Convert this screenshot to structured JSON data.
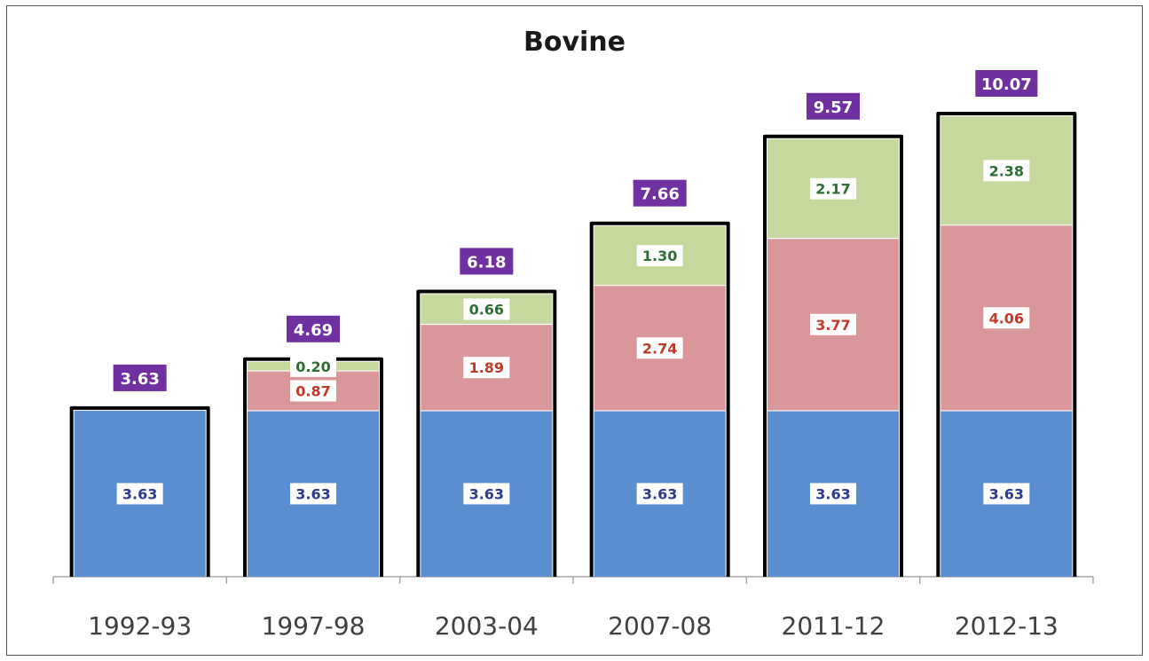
{
  "chart_data": {
    "type": "bar",
    "stacked": true,
    "title": "Bovine",
    "xlabel": "",
    "ylabel": "",
    "ylim": [
      0,
      10.07
    ],
    "grid": false,
    "legend": "none",
    "categories": [
      "1992-93",
      "1997-98",
      "2003-04",
      "2007-08",
      "2011-12",
      "2012-13"
    ],
    "series": [
      {
        "color": "#5b8ed0",
        "label_color": "#2e3a8c",
        "values": [
          3.63,
          3.63,
          3.63,
          3.63,
          3.63,
          3.63
        ]
      },
      {
        "color": "#d9979a",
        "label_color": "#c0392b",
        "values": [
          0,
          0.87,
          1.89,
          2.74,
          3.77,
          4.06
        ]
      },
      {
        "color": "#c6d89d",
        "label_color": "#2e6e35",
        "values": [
          0,
          0.2,
          0.66,
          1.3,
          2.17,
          2.38
        ]
      }
    ],
    "totals": [
      "3.63",
      "4.69",
      "6.18",
      "7.66",
      "9.57",
      "10.07"
    ],
    "segment_labels": [
      [
        "3.63",
        "",
        ""
      ],
      [
        "3.63",
        "0.87",
        "0.20"
      ],
      [
        "3.63",
        "1.89",
        "0.66"
      ],
      [
        "3.63",
        "2.74",
        "1.30"
      ],
      [
        "3.63",
        "3.77",
        "2.17"
      ],
      [
        "3.63",
        "4.06",
        "2.38"
      ]
    ],
    "total_badge_color": "#7030a0"
  }
}
